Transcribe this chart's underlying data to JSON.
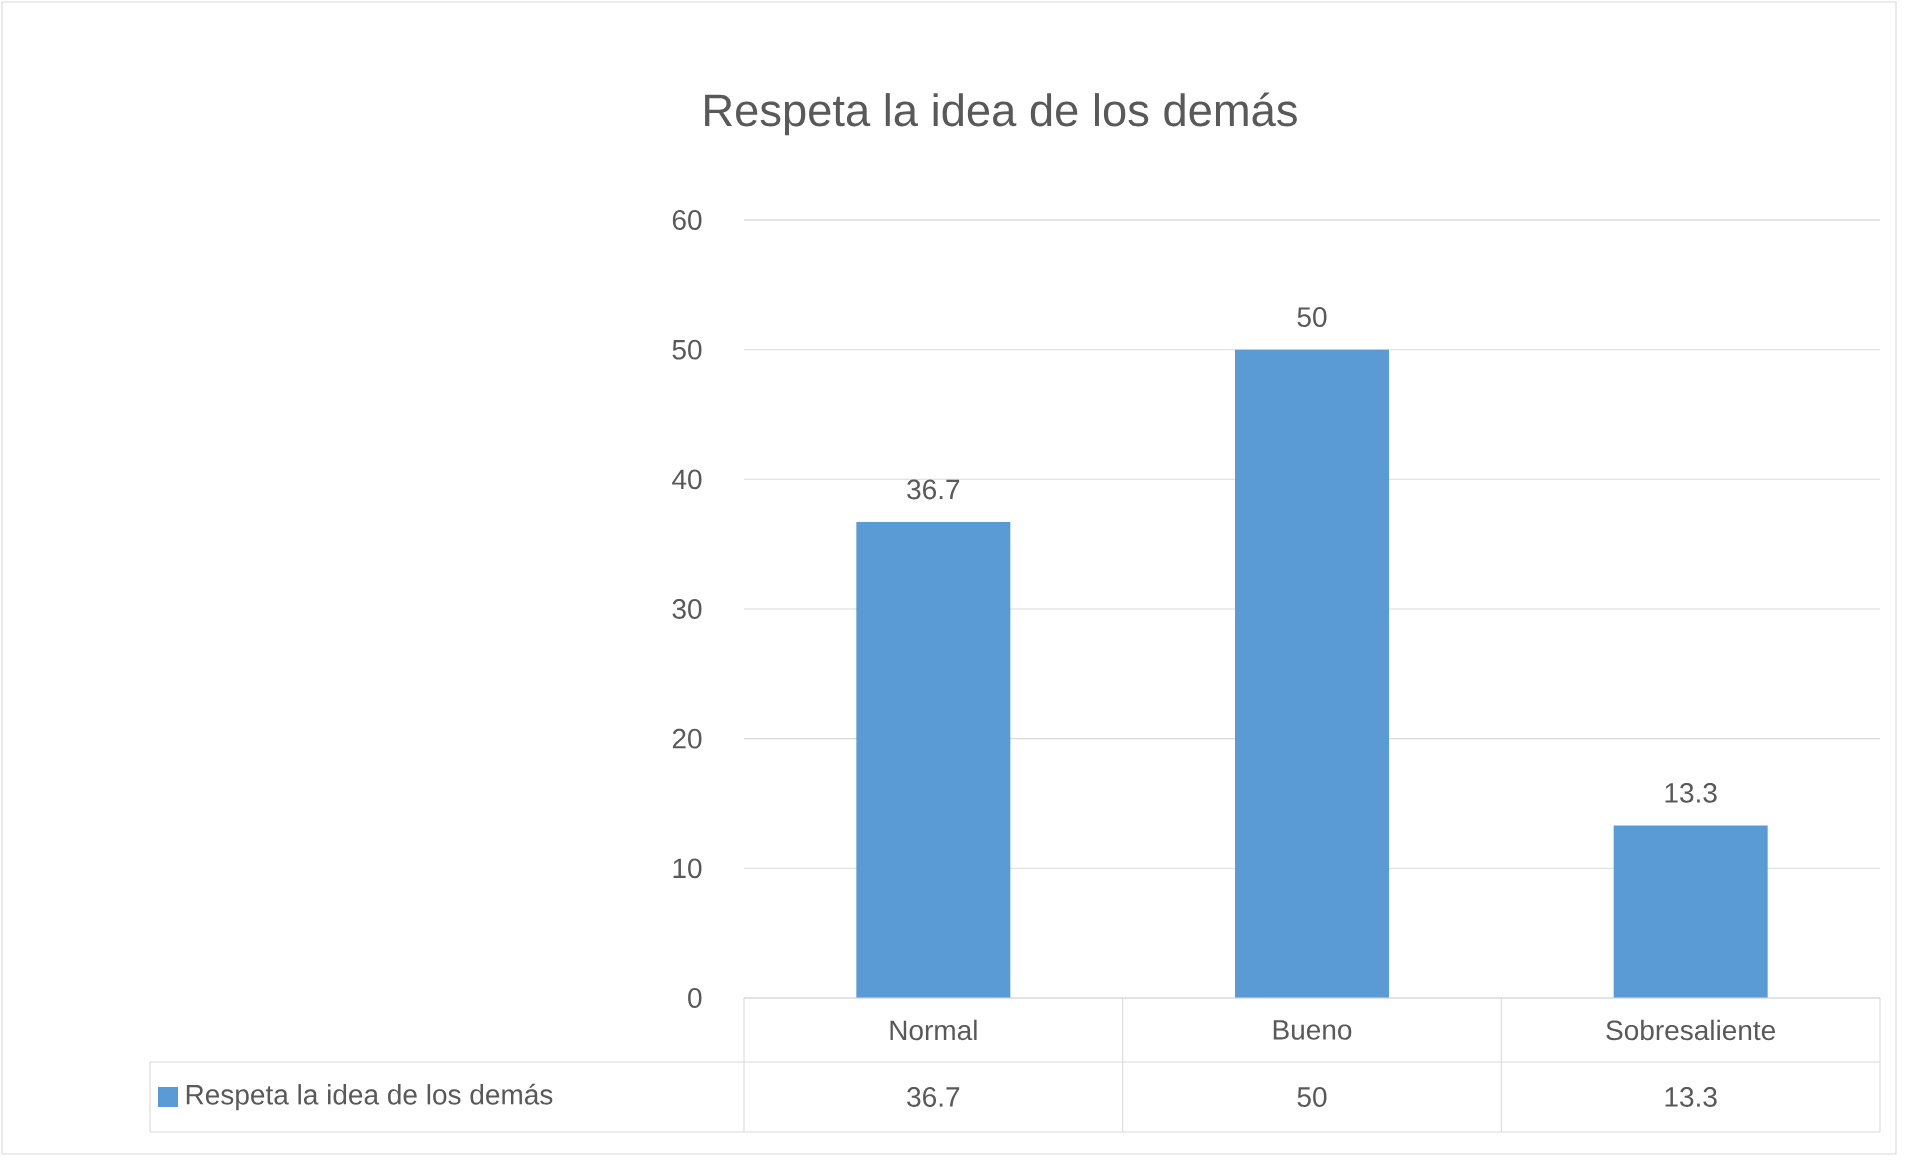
{
  "chart_data": {
    "type": "bar",
    "title": "Respeta la idea de los demás",
    "categories": [
      "Normal",
      "Bueno",
      "Sobresaliente"
    ],
    "series": [
      {
        "name": "Respeta la idea de los demás",
        "color": "#5b9bd5",
        "values": [
          36.7,
          50,
          13.3
        ],
        "value_labels": [
          "36.7",
          "50",
          "13.3"
        ]
      }
    ],
    "ylim": [
      0,
      60
    ],
    "yticks": [
      0,
      10,
      20,
      30,
      40,
      50,
      60
    ],
    "grid": "y",
    "data_labels": true,
    "legend": "bottom"
  }
}
